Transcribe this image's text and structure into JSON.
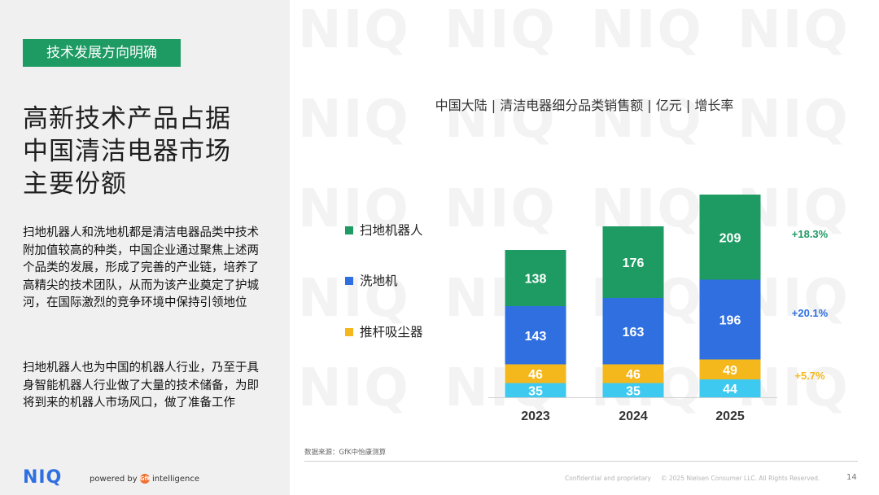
{
  "tag": "技术发展方向明确",
  "title_lines": [
    "高新技术产品占据",
    "中国清洁电器市场",
    "主要份额"
  ],
  "paragraph1": "扫地机器人和洗地机都是清洁电器品类中技术附加值较高的种类，中国企业通过聚焦上述两个品类的发展，形成了完善的产业链，培养了高精尖的技术团队，从而为该产业奠定了护城河，在国际激烈的竞争环境中保持引领地位",
  "paragraph2": "扫地机器人也为中国的机器人行业，乃至于具身智能机器人行业做了大量的技术储备，为即将到来的机器人市场风口，做了准备工作",
  "footer": {
    "logo": "NIQ",
    "powered_prefix": "powered by",
    "powered_brand": "GfK",
    "powered_suffix": "intelligence",
    "source": "数据来源：GfK中怡康测算",
    "confidential": "Confidential and proprietary",
    "copyright": "© 2025 Nielsen Consumer LLC. All Rights Reserved.",
    "page": "14"
  },
  "watermark_text": "NIQ",
  "colors": {
    "robot": "#1e9a63",
    "washer": "#2f6fe0",
    "vacuum": "#f5b81c",
    "other": "#3ec9f0",
    "tag_bg": "#1e9a63"
  },
  "chart_data": {
    "type": "bar",
    "stacked": true,
    "title": "中国大陆 | 清洁电器细分品类销售额 | 亿元 | 增长率",
    "categories": [
      "2023",
      "2024",
      "2025"
    ],
    "series": [
      {
        "key": "other",
        "values": [
          35,
          35,
          44
        ]
      },
      {
        "key": "vacuum",
        "name": "推杆吸尘器",
        "values": [
          46,
          46,
          49
        ],
        "growth": "+5.7%"
      },
      {
        "key": "washer",
        "name": "洗地机",
        "values": [
          143,
          163,
          196
        ],
        "growth": "+20.1%"
      },
      {
        "key": "robot",
        "name": "扫地机器人",
        "values": [
          138,
          176,
          209
        ],
        "growth": "+18.3%"
      }
    ],
    "legend_order": [
      "robot",
      "washer",
      "vacuum"
    ],
    "legend_position": "left"
  }
}
